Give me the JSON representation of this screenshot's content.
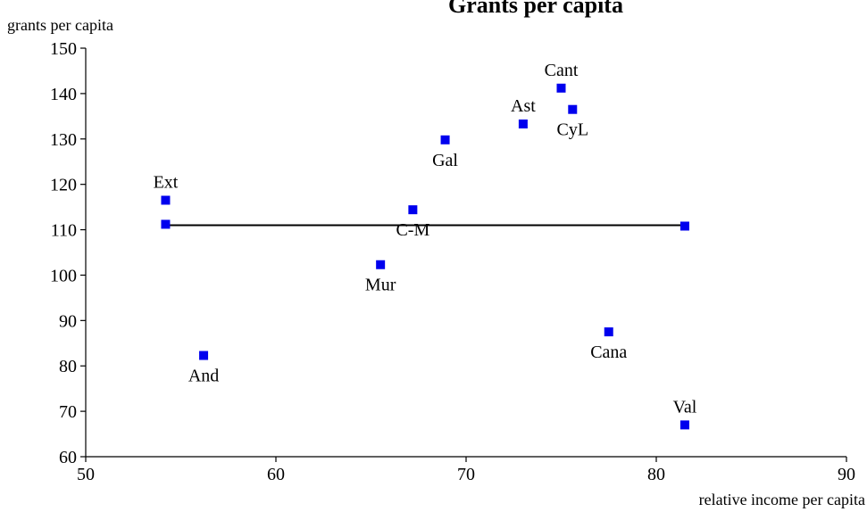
{
  "chart_data": {
    "type": "scatter",
    "title": "Grants per capita",
    "xlabel": "relative income per capita",
    "ylabel": "grants per capita",
    "xlim": [
      50,
      90
    ],
    "ylim": [
      60,
      150
    ],
    "xticks": [
      50,
      60,
      70,
      80,
      90
    ],
    "yticks": [
      60,
      70,
      80,
      90,
      100,
      110,
      120,
      130,
      140,
      150
    ],
    "grid": false,
    "marker_color": "#0000ee",
    "points": [
      {
        "label": "Ext",
        "x": 54.2,
        "y": 116.5,
        "label_pos": "above"
      },
      {
        "label": "",
        "x": 54.2,
        "y": 111.2,
        "label_pos": "none"
      },
      {
        "label": "And",
        "x": 56.2,
        "y": 82.3,
        "label_pos": "below"
      },
      {
        "label": "Mur",
        "x": 65.5,
        "y": 102.3,
        "label_pos": "below"
      },
      {
        "label": "C-M",
        "x": 67.2,
        "y": 114.4,
        "label_pos": "below"
      },
      {
        "label": "Gal",
        "x": 68.9,
        "y": 129.8,
        "label_pos": "below"
      },
      {
        "label": "Ast",
        "x": 73.0,
        "y": 133.3,
        "label_pos": "above"
      },
      {
        "label": "Cant",
        "x": 75.0,
        "y": 141.2,
        "label_pos": "above"
      },
      {
        "label": "CyL",
        "x": 75.6,
        "y": 136.5,
        "label_pos": "below"
      },
      {
        "label": "Cana",
        "x": 77.5,
        "y": 87.5,
        "label_pos": "below"
      },
      {
        "label": "",
        "x": 81.5,
        "y": 110.8,
        "label_pos": "none"
      },
      {
        "label": "Val",
        "x": 81.5,
        "y": 67.0,
        "label_pos": "above"
      }
    ],
    "reference_line": {
      "x": [
        54.2,
        81.5
      ],
      "y": [
        111.0,
        111.0
      ],
      "color": "#000000"
    }
  }
}
